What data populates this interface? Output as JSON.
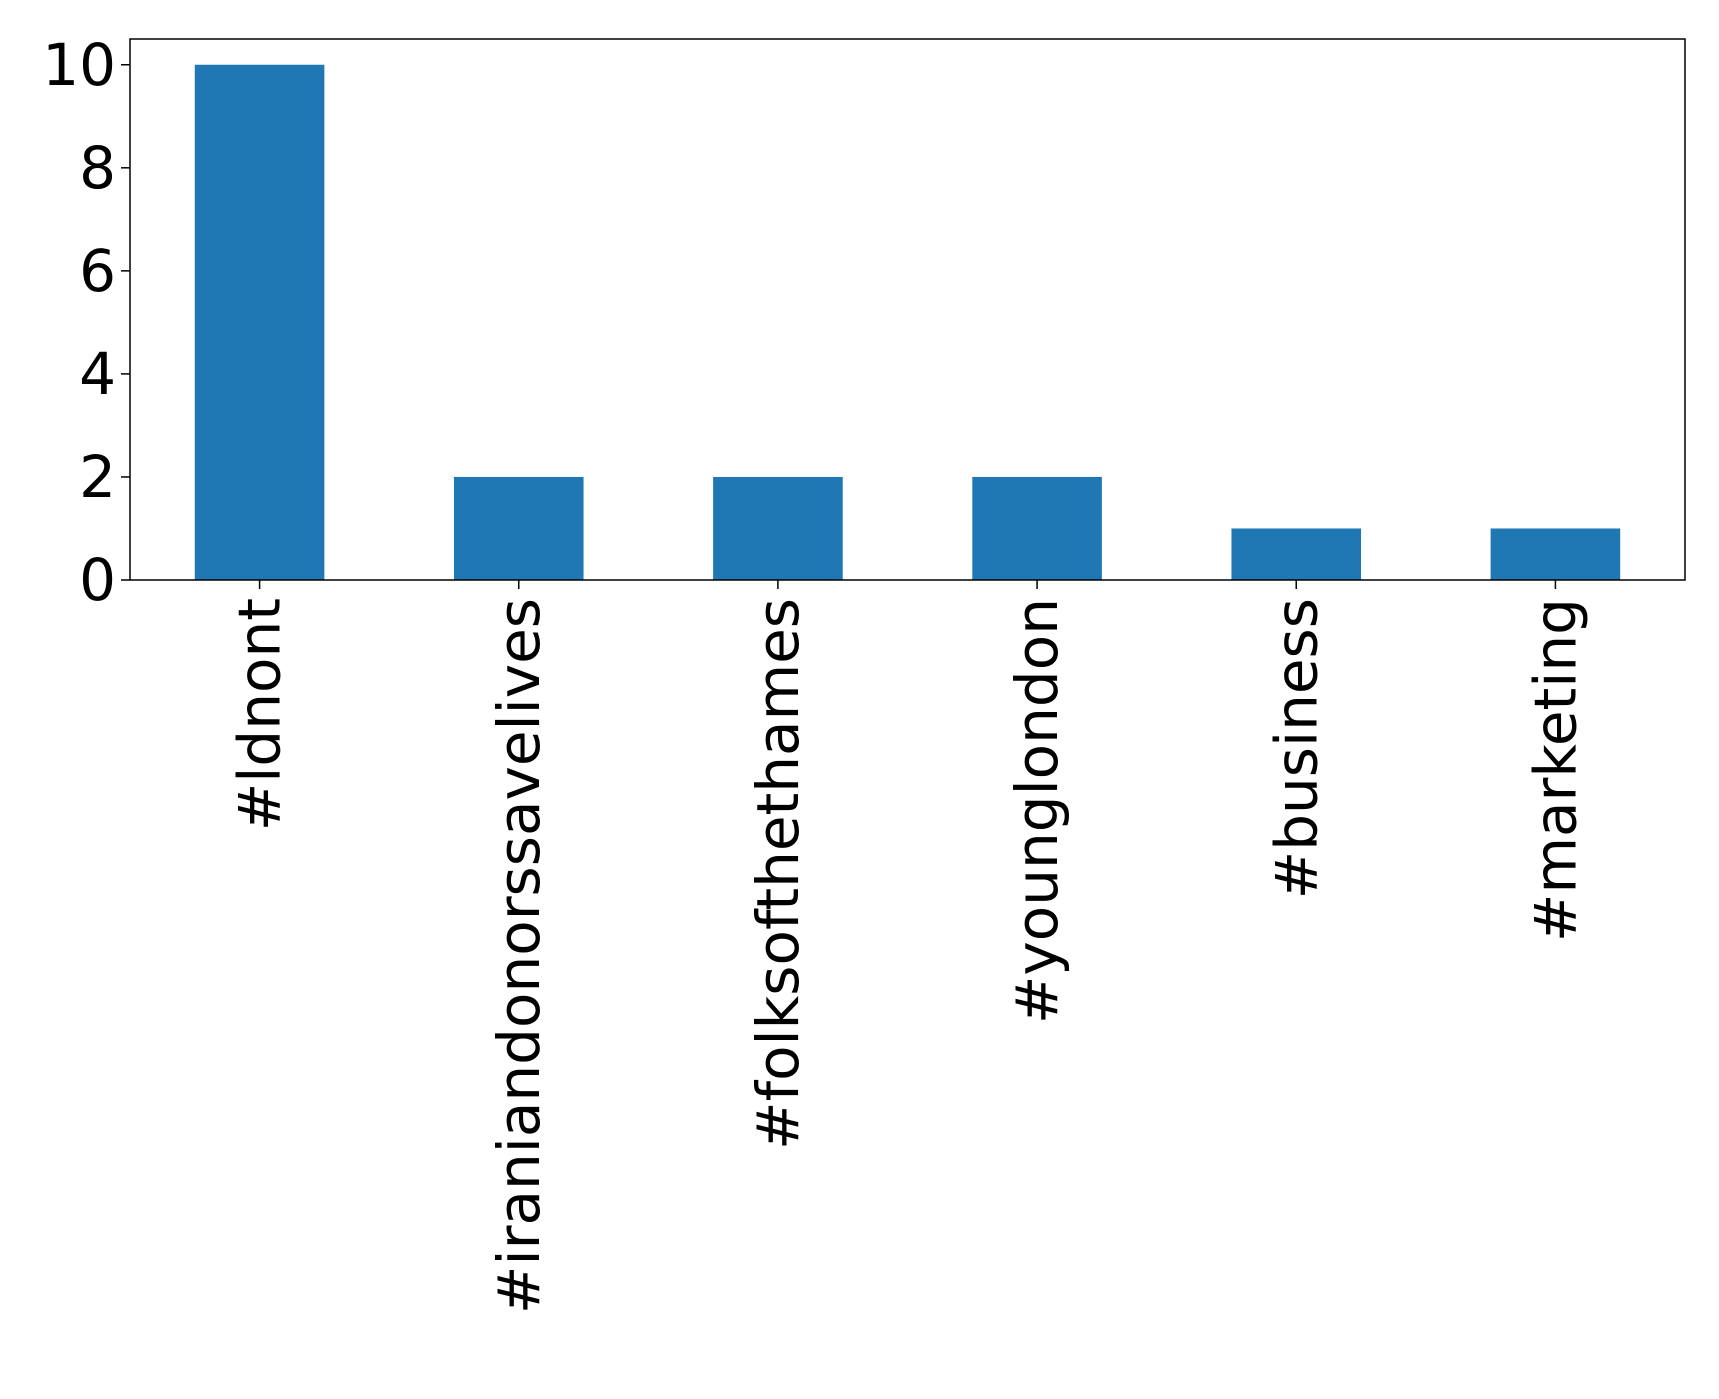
{
  "chart_data": {
    "type": "bar",
    "title": "",
    "xlabel": "",
    "ylabel": "",
    "categories": [
      "#ldnont",
      "#iraniandonorssavelives",
      "#folksofthethames",
      "#younglondon",
      "#business",
      "#marketing"
    ],
    "values": [
      10,
      2,
      2,
      2,
      1,
      1
    ],
    "ylim": [
      0,
      10.5
    ],
    "yticks": [
      0,
      2,
      4,
      6,
      8,
      10
    ],
    "ytick_labels": [
      "0",
      "2",
      "4",
      "6",
      "8",
      "10"
    ],
    "bar_color": "#1f77b4",
    "grid": false,
    "legend": "none"
  }
}
